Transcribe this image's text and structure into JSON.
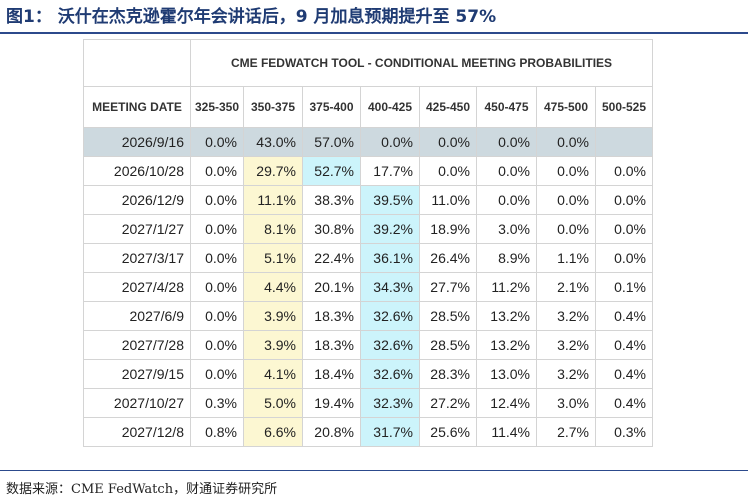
{
  "figure": {
    "title": "图1：  沃什在杰克逊霍尔年会讲话后，9 月加息预期提升至 57%",
    "source": "数据来源：CME FedWatch，财通证券研究所"
  },
  "table": {
    "tool_title": "CME FEDWATCH TOOL - CONDITIONAL MEETING PROBABILITIES",
    "columns": [
      "MEETING DATE",
      "325-350",
      "350-375",
      "375-400",
      "400-425",
      "425-450",
      "450-475",
      "475-500",
      "500-525"
    ],
    "rows": [
      {
        "date": "2026/9/16",
        "values": [
          "0.0%",
          "43.0%",
          "57.0%",
          "0.0%",
          "0.0%",
          "0.0%",
          "0.0%",
          ""
        ]
      },
      {
        "date": "2026/10/28",
        "values": [
          "0.0%",
          "29.7%",
          "52.7%",
          "17.7%",
          "0.0%",
          "0.0%",
          "0.0%",
          "0.0%"
        ]
      },
      {
        "date": "2026/12/9",
        "values": [
          "0.0%",
          "11.1%",
          "38.3%",
          "39.5%",
          "11.0%",
          "0.0%",
          "0.0%",
          "0.0%"
        ]
      },
      {
        "date": "2027/1/27",
        "values": [
          "0.0%",
          "8.1%",
          "30.8%",
          "39.2%",
          "18.9%",
          "3.0%",
          "0.0%",
          "0.0%"
        ]
      },
      {
        "date": "2027/3/17",
        "values": [
          "0.0%",
          "5.1%",
          "22.4%",
          "36.1%",
          "26.4%",
          "8.9%",
          "1.1%",
          "0.0%"
        ]
      },
      {
        "date": "2027/4/28",
        "values": [
          "0.0%",
          "4.4%",
          "20.1%",
          "34.3%",
          "27.7%",
          "11.2%",
          "2.1%",
          "0.1%"
        ]
      },
      {
        "date": "2027/6/9",
        "values": [
          "0.0%",
          "3.9%",
          "18.3%",
          "32.6%",
          "28.5%",
          "13.2%",
          "3.2%",
          "0.4%"
        ]
      },
      {
        "date": "2027/7/28",
        "values": [
          "0.0%",
          "3.9%",
          "18.3%",
          "32.6%",
          "28.5%",
          "13.2%",
          "3.2%",
          "0.4%"
        ]
      },
      {
        "date": "2027/9/15",
        "values": [
          "0.0%",
          "4.1%",
          "18.4%",
          "32.6%",
          "28.3%",
          "13.0%",
          "3.2%",
          "0.4%"
        ]
      },
      {
        "date": "2027/10/27",
        "values": [
          "0.3%",
          "5.0%",
          "19.4%",
          "32.3%",
          "27.2%",
          "12.4%",
          "3.0%",
          "0.4%"
        ]
      },
      {
        "date": "2027/12/8",
        "values": [
          "0.8%",
          "6.6%",
          "20.8%",
          "31.7%",
          "25.6%",
          "11.4%",
          "2.7%",
          "0.3%"
        ]
      }
    ],
    "colors": {
      "current_row": "#cdd9df",
      "highlight_yellow": "#fcf7d2",
      "highlight_cyan": "#ccf4fb"
    }
  }
}
